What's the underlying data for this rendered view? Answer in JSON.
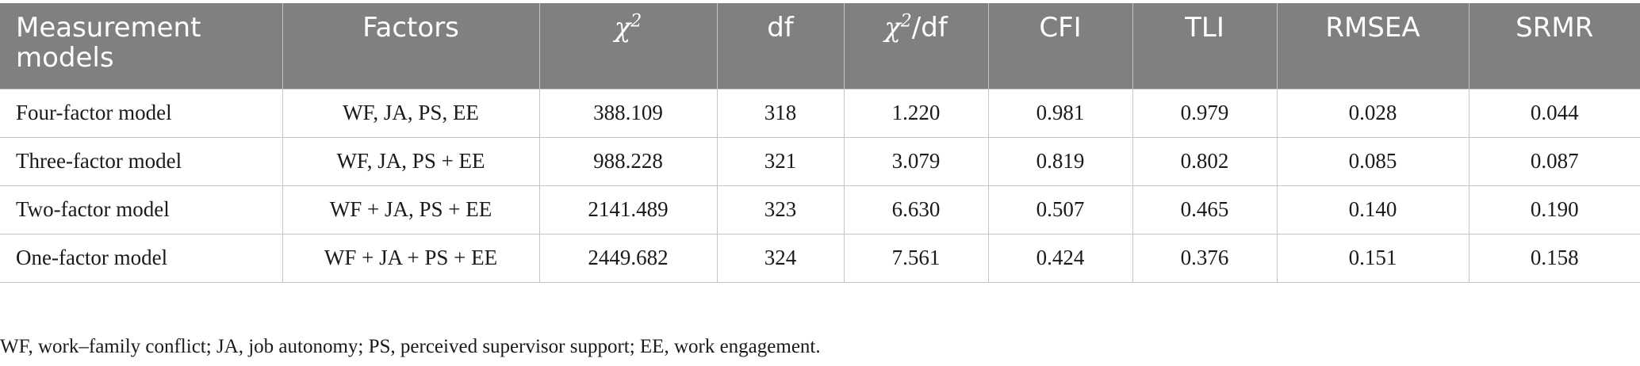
{
  "table": {
    "headers": {
      "measurement_models": "Measurement models",
      "factors": "Factors",
      "chi2_symbol": "χ",
      "chi2_exp": "2",
      "df": "df",
      "chi2df_symbol": "χ",
      "chi2df_exp": "2",
      "chi2df_suffix": "/df",
      "cfi": "CFI",
      "tli": "TLI",
      "rmsea": "RMSEA",
      "srmr": "SRMR"
    },
    "rows": [
      {
        "model": "Four-factor model",
        "factors": "WF, JA, PS, EE",
        "chi2": "388.109",
        "df": "318",
        "chi2df": "1.220",
        "cfi": "0.981",
        "tli": "0.979",
        "rmsea": "0.028",
        "srmr": "0.044"
      },
      {
        "model": "Three-factor model",
        "factors": "WF, JA, PS + EE",
        "chi2": "988.228",
        "df": "321",
        "chi2df": "3.079",
        "cfi": "0.819",
        "tli": "0.802",
        "rmsea": "0.085",
        "srmr": "0.087"
      },
      {
        "model": "Two-factor model",
        "factors": "WF + JA, PS + EE",
        "chi2": "2141.489",
        "df": "323",
        "chi2df": "6.630",
        "cfi": "0.507",
        "tli": "0.465",
        "rmsea": "0.140",
        "srmr": "0.190"
      },
      {
        "model": "One-factor model",
        "factors": "WF + JA + PS + EE",
        "chi2": "2449.682",
        "df": "324",
        "chi2df": "7.561",
        "cfi": "0.424",
        "tli": "0.376",
        "rmsea": "0.151",
        "srmr": "0.158"
      }
    ]
  },
  "footnote": "WF, work–family conflict; JA, job autonomy; PS, perceived supervisor support; EE, work engagement.",
  "colors": {
    "header_background": "#808080",
    "header_text": "#ffffff",
    "grid_line": "#c4c4c4",
    "body_text": "#1a1a1a"
  }
}
